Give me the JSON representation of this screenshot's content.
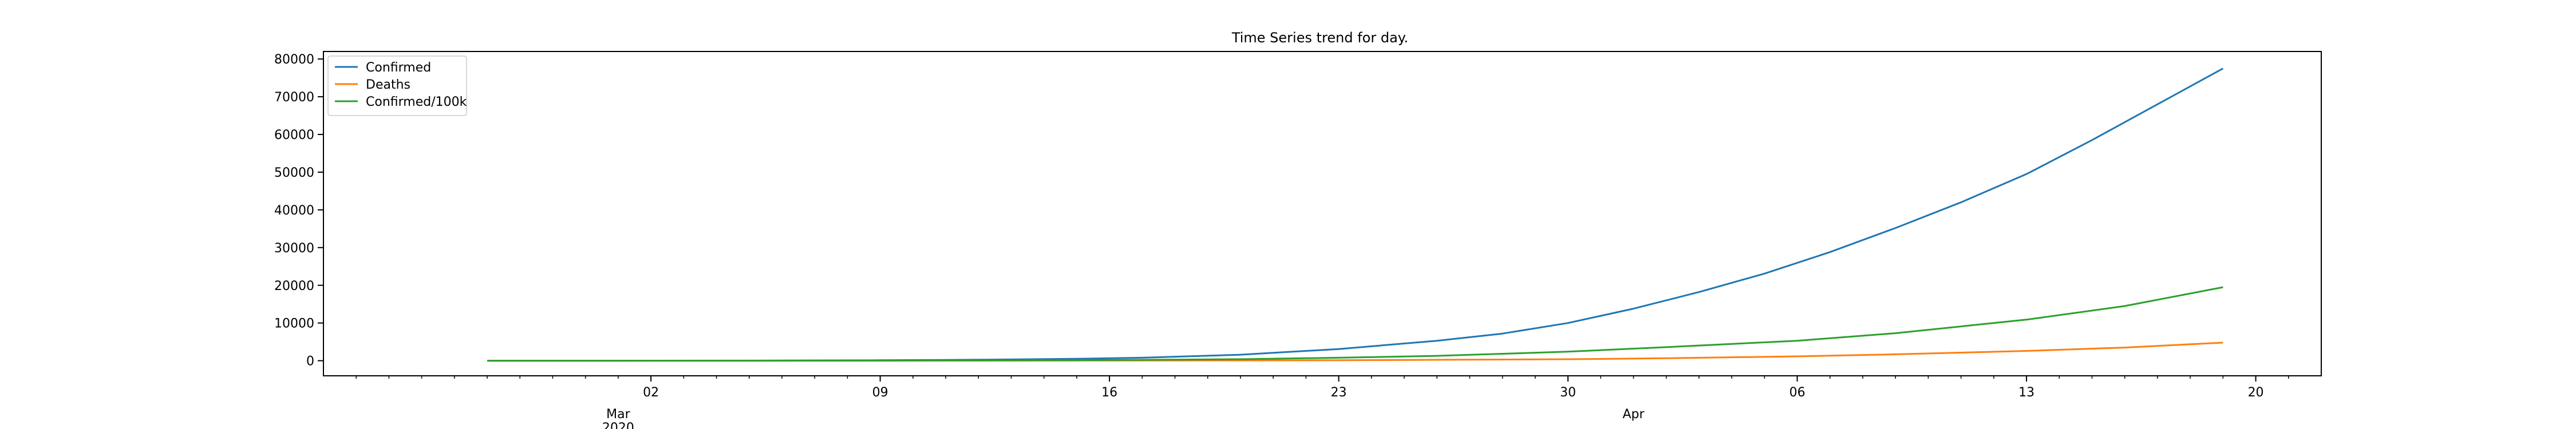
{
  "chart_data": {
    "type": "line",
    "title": "Time Series trend for day.",
    "xlabel": "",
    "ylabel": "",
    "x_axis": {
      "type": "date",
      "range": [
        "2020-02-21",
        "2020-04-22"
      ],
      "major_ticks": [
        {
          "date": "2020-03-02",
          "label": "02"
        },
        {
          "date": "2020-03-09",
          "label": "09"
        },
        {
          "date": "2020-03-16",
          "label": "16"
        },
        {
          "date": "2020-03-23",
          "label": "23"
        },
        {
          "date": "2020-03-30",
          "label": "30"
        },
        {
          "date": "2020-04-06",
          "label": "06"
        },
        {
          "date": "2020-04-13",
          "label": "13"
        },
        {
          "date": "2020-04-20",
          "label": "20"
        }
      ],
      "month_labels": [
        {
          "date": "2020-03-01",
          "lines": [
            "Mar",
            "2020"
          ]
        },
        {
          "date": "2020-04-01",
          "lines": [
            "Apr"
          ]
        }
      ],
      "minor_ticks": "daily"
    },
    "y_axis": {
      "range": [
        -4000,
        82000
      ],
      "ticks": [
        0,
        10000,
        20000,
        30000,
        40000,
        50000,
        60000,
        70000,
        80000
      ]
    },
    "grid": false,
    "legend_position": "top-left",
    "series": [
      {
        "name": "Confirmed",
        "color": "#1f77b4",
        "points": [
          [
            "2020-02-26",
            0
          ],
          [
            "2020-03-01",
            10
          ],
          [
            "2020-03-05",
            40
          ],
          [
            "2020-03-09",
            120
          ],
          [
            "2020-03-12",
            260
          ],
          [
            "2020-03-15",
            500
          ],
          [
            "2020-03-17",
            800
          ],
          [
            "2020-03-20",
            1600
          ],
          [
            "2020-03-23",
            3100
          ],
          [
            "2020-03-26",
            5300
          ],
          [
            "2020-03-28",
            7200
          ],
          [
            "2020-03-30",
            10000
          ],
          [
            "2020-04-01",
            13800
          ],
          [
            "2020-04-03",
            18200
          ],
          [
            "2020-04-05",
            23100
          ],
          [
            "2020-04-07",
            28800
          ],
          [
            "2020-04-09",
            35200
          ],
          [
            "2020-04-11",
            42000
          ],
          [
            "2020-04-13",
            49500
          ],
          [
            "2020-04-15",
            58500
          ],
          [
            "2020-04-17",
            68000
          ],
          [
            "2020-04-19",
            77500
          ]
        ]
      },
      {
        "name": "Deaths",
        "color": "#ff7f0e",
        "points": [
          [
            "2020-02-26",
            0
          ],
          [
            "2020-03-09",
            5
          ],
          [
            "2020-03-16",
            30
          ],
          [
            "2020-03-23",
            120
          ],
          [
            "2020-03-30",
            400
          ],
          [
            "2020-04-02",
            650
          ],
          [
            "2020-04-06",
            1150
          ],
          [
            "2020-04-09",
            1700
          ],
          [
            "2020-04-13",
            2600
          ],
          [
            "2020-04-16",
            3500
          ],
          [
            "2020-04-19",
            4800
          ]
        ]
      },
      {
        "name": "Confirmed/100k",
        "color": "#2ca02c",
        "points": [
          [
            "2020-02-26",
            0
          ],
          [
            "2020-03-05",
            10
          ],
          [
            "2020-03-12",
            80
          ],
          [
            "2020-03-16",
            180
          ],
          [
            "2020-03-20",
            400
          ],
          [
            "2020-03-23",
            800
          ],
          [
            "2020-03-26",
            1300
          ],
          [
            "2020-03-30",
            2400
          ],
          [
            "2020-04-02",
            3600
          ],
          [
            "2020-04-06",
            5300
          ],
          [
            "2020-04-09",
            7300
          ],
          [
            "2020-04-13",
            10900
          ],
          [
            "2020-04-16",
            14500
          ],
          [
            "2020-04-19",
            19500
          ]
        ]
      }
    ]
  }
}
